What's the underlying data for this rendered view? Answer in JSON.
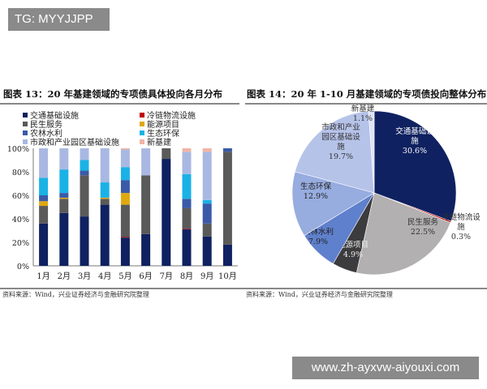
{
  "banner": "TG: MYYJJPP",
  "watermark": "www.zh-ayxvw-aiyouxi.com",
  "left": {
    "title": "图表 13：20 年基建领域的专项债具体投向各月分布",
    "source": "资料来源：Wind，兴业证券经济与金融研究院整理"
  },
  "right": {
    "title": "图表 14：20 年 1-10 月基建领域的专项债投向整体分布",
    "source": "资料来源：Wind，兴业证券经济与金融研究院整理"
  },
  "chart_data": [
    {
      "type": "bar",
      "stacked": true,
      "categories": [
        "1月",
        "2月",
        "3月",
        "4月",
        "5月",
        "6月",
        "7月",
        "8月",
        "9月",
        "10月"
      ],
      "ylim": [
        0,
        100
      ],
      "yticks": [
        "0%",
        "20%",
        "40%",
        "60%",
        "80%",
        "100%"
      ],
      "legend_position": "top",
      "series": [
        {
          "name": "交通基础设施",
          "color": "#0f2160",
          "values": [
            36,
            45,
            42,
            52,
            24,
            27,
            91,
            31,
            25,
            18
          ]
        },
        {
          "name": "冷链物流设施",
          "color": "#c00000",
          "values": [
            0,
            0,
            0,
            0,
            0.5,
            0,
            0,
            0.5,
            0,
            0
          ]
        },
        {
          "name": "民生服务",
          "color": "#5a5a5a",
          "values": [
            15,
            12,
            35,
            5,
            27.5,
            50,
            9,
            17.5,
            11,
            79
          ]
        },
        {
          "name": "能源项目",
          "color": "#e0a810",
          "values": [
            4,
            1,
            0,
            1,
            10,
            0,
            0,
            0,
            0,
            0
          ]
        },
        {
          "name": "农林水利",
          "color": "#3a5aa8",
          "values": [
            5,
            4,
            4,
            0,
            11,
            0,
            0,
            8,
            17,
            3
          ]
        },
        {
          "name": "生态环保",
          "color": "#1ab2e6",
          "values": [
            15,
            20,
            9,
            13,
            11,
            0,
            0,
            21,
            3,
            0
          ]
        },
        {
          "name": "市政和产业园区基础设施",
          "color": "#a9b8e2",
          "values": [
            25,
            18,
            10,
            29,
            15,
            23,
            0,
            19,
            41,
            0
          ]
        },
        {
          "name": "新基建",
          "color": "#f0b4a4",
          "values": [
            0,
            0,
            0,
            0,
            1,
            0,
            0,
            3,
            3,
            0
          ]
        }
      ]
    },
    {
      "type": "pie",
      "slices": [
        {
          "label": "交通基础设施",
          "value": 30.6,
          "text": "30.6%",
          "color": "#0f2160"
        },
        {
          "label": "冷链物流设施",
          "value": 0.3,
          "text": "0.3%",
          "color": "#c00000"
        },
        {
          "label": "民生服务",
          "value": 22.5,
          "text": "22.5%",
          "color": "#b2b0b0"
        },
        {
          "label": "能源项目",
          "value": 4.9,
          "text": "4.9%",
          "color": "#3c3c3e"
        },
        {
          "label": "农林水利",
          "value": 7.9,
          "text": "7.9%",
          "color": "#5f80cc"
        },
        {
          "label": "生态环保",
          "value": 12.9,
          "text": "12.9%",
          "color": "#97acdf"
        },
        {
          "label": "市政和产业园区基础设施",
          "value": 19.7,
          "text": "19.7%",
          "color": "#b6c3e9"
        },
        {
          "label": "新基建",
          "value": 1.1,
          "text": "1.1%",
          "color": "#dde4f5"
        }
      ]
    }
  ]
}
